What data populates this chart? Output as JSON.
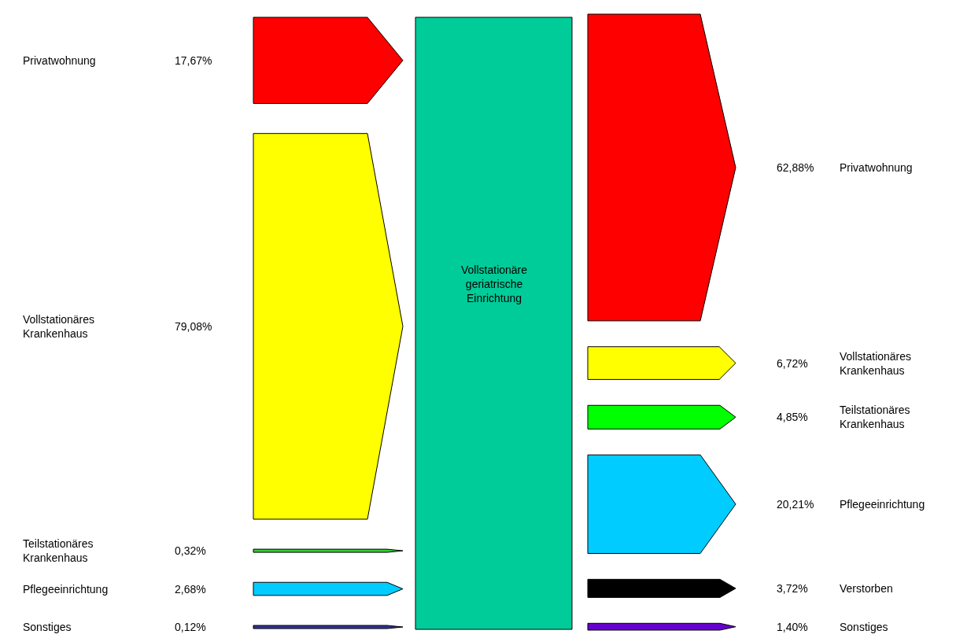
{
  "chart_data": [
    {
      "type": "other",
      "categories": [
        "Privatwohnung",
        "Vollstationäres\nKrankenhaus",
        "Teilstationäres\nKrankenhaus",
        "Pflegeeinrichtung",
        "Sonstiges"
      ],
      "values": [
        17.67,
        79.08,
        0.32,
        2.68,
        0.12
      ],
      "value_labels": [
        "17,67%",
        "79,08%",
        "0,32%",
        "2,68%",
        "0,12%"
      ],
      "colors": [
        "#ff0000",
        "#ffff00",
        "#33cc33",
        "#00ccff",
        "#333399"
      ]
    },
    {
      "type": "other",
      "categories": [
        "Vollstationäre\ngeriatrische\nEinrichtung"
      ],
      "colors": [
        "#00cc99"
      ]
    },
    {
      "type": "other",
      "categories": [
        "Privatwohnung",
        "Vollstationäres\nKrankenhaus",
        "Teilstationäres\nKrankenhaus",
        "Pflegeeinrichtung",
        "Verstorben",
        "Sonstiges"
      ],
      "values": [
        62.88,
        6.72,
        4.85,
        20.21,
        3.72,
        1.4
      ],
      "value_labels": [
        "62,88%",
        "6,72%",
        "4,85%",
        "20,21%",
        "3,72%",
        "1,40%"
      ],
      "colors": [
        "#ff0000",
        "#ffff00",
        "#00ff00",
        "#00ccff",
        "#000000",
        "#6600cc"
      ]
    }
  ]
}
